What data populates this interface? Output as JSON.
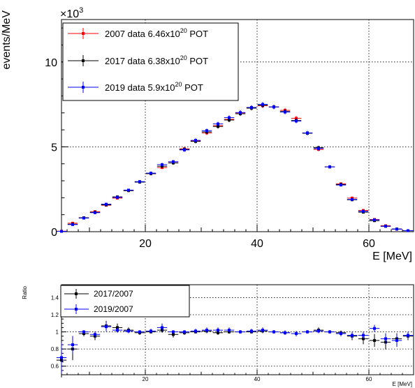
{
  "chart_data": [
    {
      "type": "scatter",
      "xlabel": "E [MeV]",
      "ylabel": "events/MeV",
      "y_exponent_base": "×10",
      "y_exponent_power": "3",
      "xlim": [
        5,
        68
      ],
      "ylim": [
        0,
        12.5
      ],
      "x_ticks": [
        20,
        40,
        60
      ],
      "y_ticks": [
        0,
        5,
        10
      ],
      "grid": true,
      "legend_position": "top-left",
      "x": [
        5,
        7,
        9,
        11,
        13,
        15,
        17,
        19,
        21,
        23,
        25,
        27,
        29,
        31,
        33,
        35,
        37,
        39,
        41,
        43,
        45,
        47,
        49,
        51,
        53,
        55,
        57,
        59,
        61,
        63,
        65,
        67
      ],
      "series": [
        {
          "name_main": "2007 data 6.46x10",
          "name_sup": "20",
          "name_tail": " POT",
          "color": "#ff0000",
          "values": [
            0.03,
            0.5,
            0.82,
            1.18,
            1.56,
            1.98,
            2.42,
            2.94,
            3.42,
            3.78,
            4.12,
            4.88,
            5.35,
            5.82,
            6.25,
            6.62,
            7.0,
            7.28,
            7.42,
            7.35,
            7.15,
            6.68,
            5.82,
            4.85,
            3.82,
            2.82,
            1.98,
            1.25,
            0.72,
            0.35,
            0.15,
            0.06
          ]
        },
        {
          "name_main": "2017 data 6.38x10",
          "name_sup": "20",
          "name_tail": " POT",
          "color": "#000000",
          "values": [
            0.02,
            0.44,
            0.82,
            1.14,
            1.58,
            2.05,
            2.42,
            2.92,
            3.42,
            3.86,
            4.05,
            4.85,
            5.32,
            5.88,
            6.2,
            6.58,
            6.95,
            7.28,
            7.45,
            7.35,
            7.08,
            6.55,
            5.8,
            4.95,
            3.82,
            2.78,
            1.88,
            1.15,
            0.65,
            0.32,
            0.16,
            0.06
          ]
        },
        {
          "name_main": "2019 data 5.9x10",
          "name_sup": "20",
          "name_tail": " POT",
          "color": "#0000ff",
          "values": [
            0.02,
            0.42,
            0.8,
            1.12,
            1.62,
            2.02,
            2.45,
            2.95,
            3.45,
            3.95,
            4.12,
            4.82,
            5.38,
            5.95,
            6.35,
            6.72,
            7.02,
            7.32,
            7.5,
            7.35,
            7.05,
            6.52,
            5.82,
            4.9,
            3.82,
            2.75,
            1.9,
            1.2,
            0.7,
            0.32,
            0.15,
            0.06
          ]
        }
      ]
    },
    {
      "type": "scatter",
      "xlabel": "E [MeV]",
      "ylabel": "Ratio",
      "xlim": [
        5,
        68
      ],
      "ylim": [
        0.5,
        1.55
      ],
      "x_ticks": [
        20,
        40,
        60
      ],
      "y_ticks": [
        0.6,
        0.8,
        1,
        1.2,
        1.4
      ],
      "grid": true,
      "legend_position": "top-left",
      "x": [
        5,
        7,
        9,
        11,
        13,
        15,
        17,
        19,
        21,
        23,
        25,
        27,
        29,
        31,
        33,
        35,
        37,
        39,
        41,
        43,
        45,
        47,
        49,
        51,
        53,
        55,
        57,
        59,
        61,
        63,
        65,
        67
      ],
      "series": [
        {
          "name": "2017/2007",
          "color": "#000000",
          "values": [
            0.67,
            0.8,
            0.98,
            0.95,
            1.07,
            1.05,
            1.02,
            0.99,
            1.0,
            1.02,
            0.97,
            0.99,
            1.0,
            1.01,
            0.99,
            1.0,
            1.0,
            1.0,
            1.01,
            1.0,
            0.99,
            0.98,
            1.0,
            1.02,
            1.0,
            0.99,
            0.95,
            0.92,
            0.9,
            0.88,
            0.92,
            0.95
          ]
        },
        {
          "name": "2019/2007",
          "color": "#0000ff",
          "values": [
            0.7,
            0.85,
            1.0,
            0.97,
            1.06,
            1.02,
            1.01,
            1.0,
            1.01,
            1.05,
            1.0,
            1.0,
            1.01,
            1.02,
            1.02,
            1.02,
            1.0,
            1.01,
            1.02,
            1.0,
            0.99,
            0.98,
            1.0,
            1.01,
            1.0,
            0.98,
            0.96,
            0.96,
            1.04,
            0.92,
            0.9,
            0.96
          ]
        }
      ]
    }
  ]
}
